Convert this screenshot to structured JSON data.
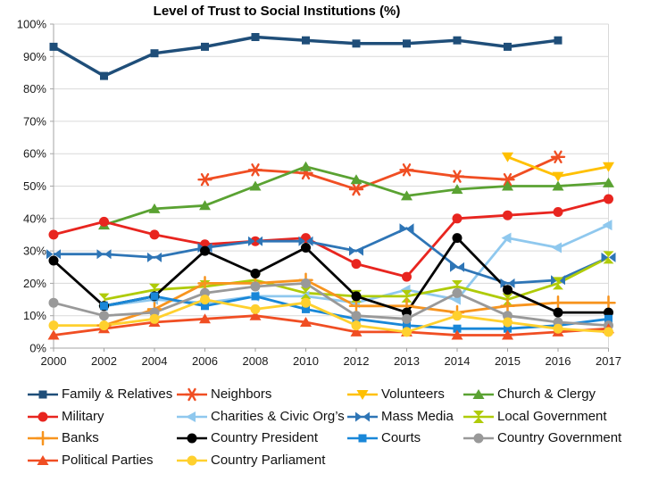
{
  "title": "Level of Trust to Social Institutions (%)",
  "chart_data": {
    "type": "line",
    "categories": [
      "2000",
      "2002",
      "2004",
      "2006",
      "2008",
      "2010",
      "2012",
      "2013",
      "2014",
      "2015",
      "2016",
      "2017"
    ],
    "y_axis": {
      "min": 0,
      "max": 100,
      "step": 10,
      "suffix": "%"
    },
    "grid": true,
    "legend_position": "bottom",
    "series": [
      {
        "name": "Family & Relatives",
        "color": "#1F4E79",
        "marker": "square",
        "values": [
          93,
          84,
          91,
          93,
          96,
          95,
          94,
          94,
          95,
          93,
          95,
          null
        ]
      },
      {
        "name": "Neighbors",
        "color": "#F04E23",
        "marker": "asterisk",
        "values": [
          null,
          null,
          null,
          52,
          55,
          54,
          49,
          55,
          53,
          52,
          59,
          null
        ]
      },
      {
        "name": "Volunteers",
        "color": "#FFC000",
        "marker": "triangle-down",
        "values": [
          null,
          null,
          null,
          null,
          null,
          null,
          null,
          null,
          null,
          59,
          53,
          56
        ]
      },
      {
        "name": "Church & Clergy",
        "color": "#5AA232",
        "marker": "triangle-up",
        "values": [
          null,
          38,
          43,
          44,
          50,
          56,
          52,
          47,
          49,
          50,
          50,
          51
        ]
      },
      {
        "name": "Military",
        "color": "#E8251F",
        "marker": "circle",
        "values": [
          35,
          39,
          35,
          32,
          33,
          34,
          26,
          22,
          40,
          41,
          42,
          46
        ]
      },
      {
        "name": "Charities & Civic Org’s",
        "color": "#8FC8EE",
        "marker": "triangle-left",
        "values": [
          null,
          13,
          15,
          14,
          16,
          16,
          14,
          18,
          15,
          34,
          31,
          38
        ]
      },
      {
        "name": "Mass Media",
        "color": "#2E75B6",
        "marker": "bowtie-h",
        "values": [
          29,
          29,
          28,
          31,
          33,
          33,
          30,
          37,
          25,
          20,
          21,
          28
        ]
      },
      {
        "name": "Local Government",
        "color": "#AFCB08",
        "marker": "bowtie-v",
        "values": [
          null,
          15,
          18,
          19,
          21,
          17,
          16,
          16,
          19,
          15,
          20,
          28
        ]
      },
      {
        "name": "Banks",
        "color": "#F7941E",
        "marker": "plus",
        "values": [
          null,
          7,
          12,
          20,
          20,
          21,
          13,
          13,
          11,
          13,
          14,
          14
        ]
      },
      {
        "name": "Country President",
        "color": "#000000",
        "marker": "circle",
        "values": [
          27,
          13,
          16,
          30,
          23,
          31,
          16,
          11,
          34,
          18,
          11,
          11
        ]
      },
      {
        "name": "Courts",
        "color": "#1987D8",
        "marker": "square",
        "values": [
          null,
          13,
          16,
          13,
          16,
          12,
          9,
          7,
          6,
          6,
          7,
          9
        ]
      },
      {
        "name": "Country Government",
        "color": "#999999",
        "marker": "circle",
        "values": [
          14,
          10,
          11,
          17,
          19,
          20,
          10,
          9,
          17,
          10,
          8,
          7
        ]
      },
      {
        "name": "Political Parties",
        "color": "#F04E23",
        "marker": "triangle-up",
        "values": [
          4,
          6,
          8,
          9,
          10,
          8,
          5,
          5,
          4,
          4,
          5,
          6
        ]
      },
      {
        "name": "Country Parliament",
        "color": "#FFD02E",
        "marker": "circle",
        "values": [
          7,
          7,
          9,
          15,
          12,
          14,
          7,
          5,
          10,
          8,
          6,
          5
        ]
      }
    ]
  },
  "legend": {
    "rows": [
      [
        0,
        1,
        2,
        3
      ],
      [
        4,
        5,
        6,
        7
      ],
      [
        8,
        9,
        10,
        11
      ],
      [
        12,
        13
      ]
    ]
  }
}
